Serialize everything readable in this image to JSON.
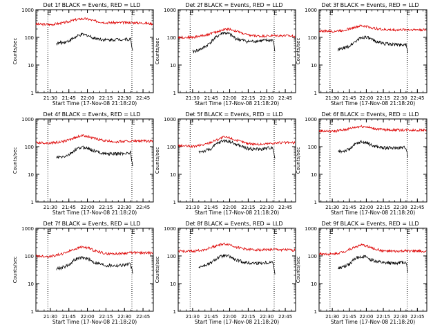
{
  "figure": {
    "x_tick_labels": [
      "21:30",
      "21:45",
      "22:00",
      "22:15",
      "22:30",
      "22:45"
    ],
    "y_tick_labels": [
      "1",
      "10",
      "100",
      "1000"
    ],
    "xlabel": "Start Time (17-Nov-08 21:18:20)",
    "ylabel": "Counts/sec",
    "event_marker_label": "E",
    "colors": {
      "events": "#000000",
      "lld": "#dd0000",
      "axes": "#000000"
    }
  },
  "chart_data": [
    {
      "type": "line",
      "title": "Det 1f BLACK = Events, RED = LLD",
      "xlabel": "Start Time (17-Nov-08 21:18:20)",
      "ylabel": "Counts/sec",
      "ylim": [
        1,
        1000
      ],
      "yscale": "log",
      "x_ticks": [
        "21:30",
        "21:45",
        "22:00",
        "22:15",
        "22:30",
        "22:45"
      ],
      "markers": [
        "21:28",
        "22:36"
      ],
      "series": [
        {
          "x": [
            "21:18",
            "21:30",
            "21:40",
            "21:50",
            "21:55",
            "22:00",
            "22:05",
            "22:15",
            "22:25",
            "22:35",
            "22:45",
            "22:53"
          ],
          "values": [
            300,
            290,
            330,
            430,
            470,
            460,
            400,
            340,
            340,
            340,
            330,
            310
          ]
        },
        {
          "x": [
            "21:35",
            "21:40",
            "21:45",
            "21:50",
            "21:55",
            "22:00",
            "22:05",
            "22:15",
            "22:25",
            "22:35",
            "22:37"
          ],
          "values": [
            60,
            65,
            75,
            100,
            125,
            120,
            95,
            80,
            85,
            85,
            25
          ]
        }
      ]
    },
    {
      "type": "line",
      "title": "Det 2f BLACK = Events, RED = LLD",
      "xlabel": "Start Time (17-Nov-08 21:18:20)",
      "ylabel": "Counts/sec",
      "ylim": [
        1,
        1000
      ],
      "yscale": "log",
      "x_ticks": [
        "21:30",
        "21:45",
        "22:00",
        "22:15",
        "22:30",
        "22:45"
      ],
      "markers": [
        "21:28",
        "22:36"
      ],
      "series": [
        {
          "x": [
            "21:18",
            "21:30",
            "21:40",
            "21:50",
            "21:55",
            "22:00",
            "22:05",
            "22:15",
            "22:25",
            "22:35",
            "22:45",
            "22:53"
          ],
          "values": [
            100,
            100,
            120,
            160,
            190,
            200,
            170,
            120,
            110,
            115,
            115,
            110
          ]
        },
        {
          "x": [
            "21:30",
            "21:35",
            "21:40",
            "21:45",
            "21:50",
            "21:55",
            "22:00",
            "22:05",
            "22:15",
            "22:25",
            "22:35",
            "22:37"
          ],
          "values": [
            30,
            35,
            45,
            70,
            110,
            150,
            130,
            90,
            70,
            75,
            80,
            25
          ]
        }
      ]
    },
    {
      "type": "line",
      "title": "Det 3f BLACK = Events, RED = LLD",
      "xlabel": "Start Time (17-Nov-08 21:18:20)",
      "ylabel": "Counts/sec",
      "ylim": [
        1,
        1000
      ],
      "yscale": "log",
      "x_ticks": [
        "21:30",
        "21:45",
        "22:00",
        "22:15",
        "22:30",
        "22:45"
      ],
      "markers": [
        "21:28",
        "22:36"
      ],
      "series": [
        {
          "x": [
            "21:18",
            "21:30",
            "21:40",
            "21:50",
            "21:55",
            "22:00",
            "22:05",
            "22:15",
            "22:25",
            "22:35",
            "22:45",
            "22:53"
          ],
          "values": [
            170,
            165,
            180,
            230,
            260,
            250,
            220,
            190,
            185,
            190,
            190,
            185
          ]
        },
        {
          "x": [
            "21:35",
            "21:40",
            "21:45",
            "21:50",
            "21:55",
            "22:00",
            "22:05",
            "22:15",
            "22:25",
            "22:35",
            "22:37"
          ],
          "values": [
            35,
            40,
            48,
            70,
            95,
            105,
            80,
            60,
            55,
            55,
            22
          ]
        }
      ]
    },
    {
      "type": "line",
      "title": "Det 4f BLACK = Events, RED = LLD",
      "xlabel": "Start Time (17-Nov-08 21:18:20)",
      "ylabel": "Counts/sec",
      "ylim": [
        1,
        1000
      ],
      "yscale": "log",
      "x_ticks": [
        "21:30",
        "21:45",
        "22:00",
        "22:15",
        "22:30",
        "22:45"
      ],
      "markers": [
        "21:28",
        "22:36"
      ],
      "series": [
        {
          "x": [
            "21:18",
            "21:30",
            "21:40",
            "21:50",
            "21:55",
            "22:00",
            "22:05",
            "22:15",
            "22:25",
            "22:35",
            "22:45",
            "22:53"
          ],
          "values": [
            140,
            135,
            150,
            210,
            250,
            240,
            200,
            160,
            150,
            160,
            160,
            155
          ]
        },
        {
          "x": [
            "21:35",
            "21:40",
            "21:45",
            "21:50",
            "21:55",
            "22:00",
            "22:05",
            "22:15",
            "22:25",
            "22:35",
            "22:37"
          ],
          "values": [
            40,
            42,
            50,
            75,
            95,
            90,
            70,
            55,
            55,
            60,
            15
          ]
        }
      ]
    },
    {
      "type": "line",
      "title": "Det 5f BLACK = Events, RED = LLD",
      "xlabel": "Start Time (17-Nov-08 21:18:20)",
      "ylabel": "Counts/sec",
      "ylim": [
        1,
        1000
      ],
      "yscale": "log",
      "x_ticks": [
        "21:30",
        "21:45",
        "22:00",
        "22:15",
        "22:30",
        "22:45"
      ],
      "markers": [
        "21:28",
        "22:36"
      ],
      "series": [
        {
          "x": [
            "21:18",
            "21:30",
            "21:40",
            "21:50",
            "21:55",
            "22:00",
            "22:05",
            "22:15",
            "22:25",
            "22:35",
            "22:45",
            "22:53"
          ],
          "values": [
            110,
            100,
            120,
            180,
            220,
            210,
            170,
            130,
            120,
            135,
            140,
            135
          ]
        },
        {
          "x": [
            "21:35",
            "21:40",
            "21:45",
            "21:50",
            "21:55",
            "22:00",
            "22:05",
            "22:15",
            "22:25",
            "22:35",
            "22:37"
          ],
          "values": [
            65,
            70,
            85,
            130,
            165,
            155,
            120,
            85,
            80,
            95,
            30
          ]
        }
      ]
    },
    {
      "type": "line",
      "title": "Det 6f BLACK = Events, RED = LLD",
      "xlabel": "Start Time (17-Nov-08 21:18:20)",
      "ylabel": "Counts/sec",
      "ylim": [
        1,
        1000
      ],
      "yscale": "log",
      "x_ticks": [
        "21:30",
        "21:45",
        "22:00",
        "22:15",
        "22:30",
        "22:45"
      ],
      "markers": [
        "21:28",
        "22:36"
      ],
      "series": [
        {
          "x": [
            "21:18",
            "21:30",
            "21:40",
            "21:50",
            "21:55",
            "22:00",
            "22:05",
            "22:15",
            "22:25",
            "22:35",
            "22:45",
            "22:53"
          ],
          "values": [
            370,
            360,
            400,
            500,
            540,
            530,
            460,
            410,
            400,
            400,
            395,
            390
          ]
        },
        {
          "x": [
            "21:35",
            "21:40",
            "21:45",
            "21:50",
            "21:55",
            "22:00",
            "22:05",
            "22:15",
            "22:25",
            "22:35",
            "22:37"
          ],
          "values": [
            65,
            70,
            80,
            120,
            150,
            140,
            110,
            90,
            90,
            95,
            35
          ]
        }
      ]
    },
    {
      "type": "line",
      "title": "Det 7f BLACK = Events, RED = LLD",
      "xlabel": "Start Time (17-Nov-08 21:18:20)",
      "ylabel": "Counts/sec",
      "ylim": [
        1,
        1000
      ],
      "yscale": "log",
      "x_ticks": [
        "21:30",
        "21:45",
        "22:00",
        "22:15",
        "22:30",
        "22:45"
      ],
      "markers": [
        "21:28",
        "22:36"
      ],
      "series": [
        {
          "x": [
            "21:18",
            "21:30",
            "21:40",
            "21:50",
            "21:55",
            "22:00",
            "22:05",
            "22:15",
            "22:25",
            "22:35",
            "22:45",
            "22:53"
          ],
          "values": [
            100,
            95,
            120,
            180,
            210,
            200,
            160,
            120,
            120,
            130,
            130,
            125
          ]
        },
        {
          "x": [
            "21:35",
            "21:40",
            "21:45",
            "21:50",
            "21:55",
            "22:00",
            "22:05",
            "22:15",
            "22:25",
            "22:35",
            "22:37"
          ],
          "values": [
            35,
            38,
            48,
            75,
            85,
            80,
            60,
            45,
            45,
            50,
            20
          ]
        }
      ]
    },
    {
      "type": "line",
      "title": "Det 8f BLACK = Events, RED = LLD",
      "xlabel": "Start Time (17-Nov-08 21:18:20)",
      "ylabel": "Counts/sec",
      "ylim": [
        1,
        1000
      ],
      "yscale": "log",
      "x_ticks": [
        "21:30",
        "21:45",
        "22:00",
        "22:15",
        "22:30",
        "22:45"
      ],
      "markers": [
        "21:28",
        "22:36"
      ],
      "series": [
        {
          "x": [
            "21:18",
            "21:30",
            "21:40",
            "21:50",
            "21:55",
            "22:00",
            "22:05",
            "22:15",
            "22:25",
            "22:35",
            "22:45",
            "22:53"
          ],
          "values": [
            150,
            145,
            170,
            240,
            270,
            260,
            210,
            170,
            165,
            170,
            165,
            160
          ]
        },
        {
          "x": [
            "21:35",
            "21:40",
            "21:45",
            "21:50",
            "21:55",
            "22:00",
            "22:05",
            "22:15",
            "22:25",
            "22:35",
            "22:37"
          ],
          "values": [
            40,
            45,
            55,
            85,
            100,
            95,
            70,
            55,
            55,
            60,
            18
          ]
        }
      ]
    },
    {
      "type": "line",
      "title": "Det 9f BLACK = Events, RED = LLD",
      "xlabel": "Start Time (17-Nov-08 21:18:20)",
      "ylabel": "Counts/sec",
      "ylim": [
        1,
        1000
      ],
      "yscale": "log",
      "x_ticks": [
        "21:30",
        "21:45",
        "22:00",
        "22:15",
        "22:30",
        "22:45"
      ],
      "markers": [
        "21:28",
        "22:36"
      ],
      "series": [
        {
          "x": [
            "21:18",
            "21:30",
            "21:40",
            "21:50",
            "21:55",
            "22:00",
            "22:05",
            "22:15",
            "22:25",
            "22:35",
            "22:45",
            "22:53"
          ],
          "values": [
            120,
            115,
            140,
            210,
            245,
            235,
            190,
            150,
            145,
            150,
            150,
            145
          ]
        },
        {
          "x": [
            "21:35",
            "21:40",
            "21:45",
            "21:50",
            "21:55",
            "22:00",
            "22:05",
            "22:15",
            "22:25",
            "22:35",
            "22:37"
          ],
          "values": [
            35,
            40,
            50,
            80,
            95,
            90,
            70,
            55,
            55,
            60,
            22
          ]
        }
      ]
    }
  ]
}
